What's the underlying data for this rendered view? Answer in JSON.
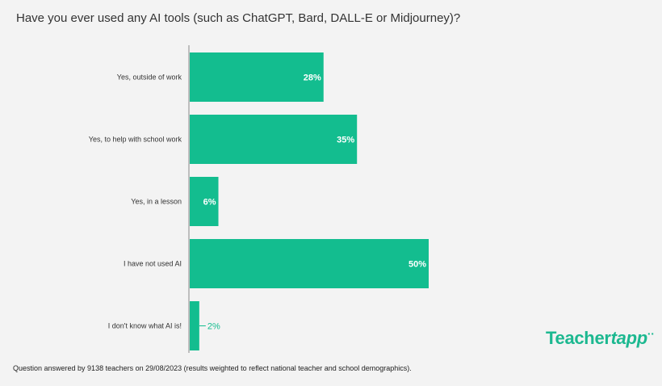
{
  "title": "Have you ever used any AI tools (such as ChatGPT, Bard, DALL-E or Midjourney)?",
  "footnote": "Question answered by 9138 teachers on 29/08/2023 (results weighted to reflect national teacher and school demographics).",
  "logo": {
    "part1": "Teacher",
    "part2": "tapp"
  },
  "colors": {
    "bar": "#13bd8f",
    "axis": "#888888",
    "label_inside": "#ffffff",
    "label_outside": "#13bd8f"
  },
  "chart_data": {
    "type": "bar",
    "orientation": "horizontal",
    "categories": [
      "Yes, outside of work",
      "Yes, to help with school work",
      "Yes, in a lesson",
      "I have not used AI",
      "I don't know what AI is!"
    ],
    "values": [
      28,
      35,
      6,
      50,
      2
    ],
    "value_labels": [
      "28%",
      "35%",
      "6%",
      "50%",
      "2%"
    ],
    "unit": "%",
    "xlim": [
      0,
      100
    ],
    "title": "Have you ever used any AI tools (such as ChatGPT, Bard, DALL-E or Midjourney)?",
    "xlabel": "",
    "ylabel": "",
    "grid": false
  }
}
